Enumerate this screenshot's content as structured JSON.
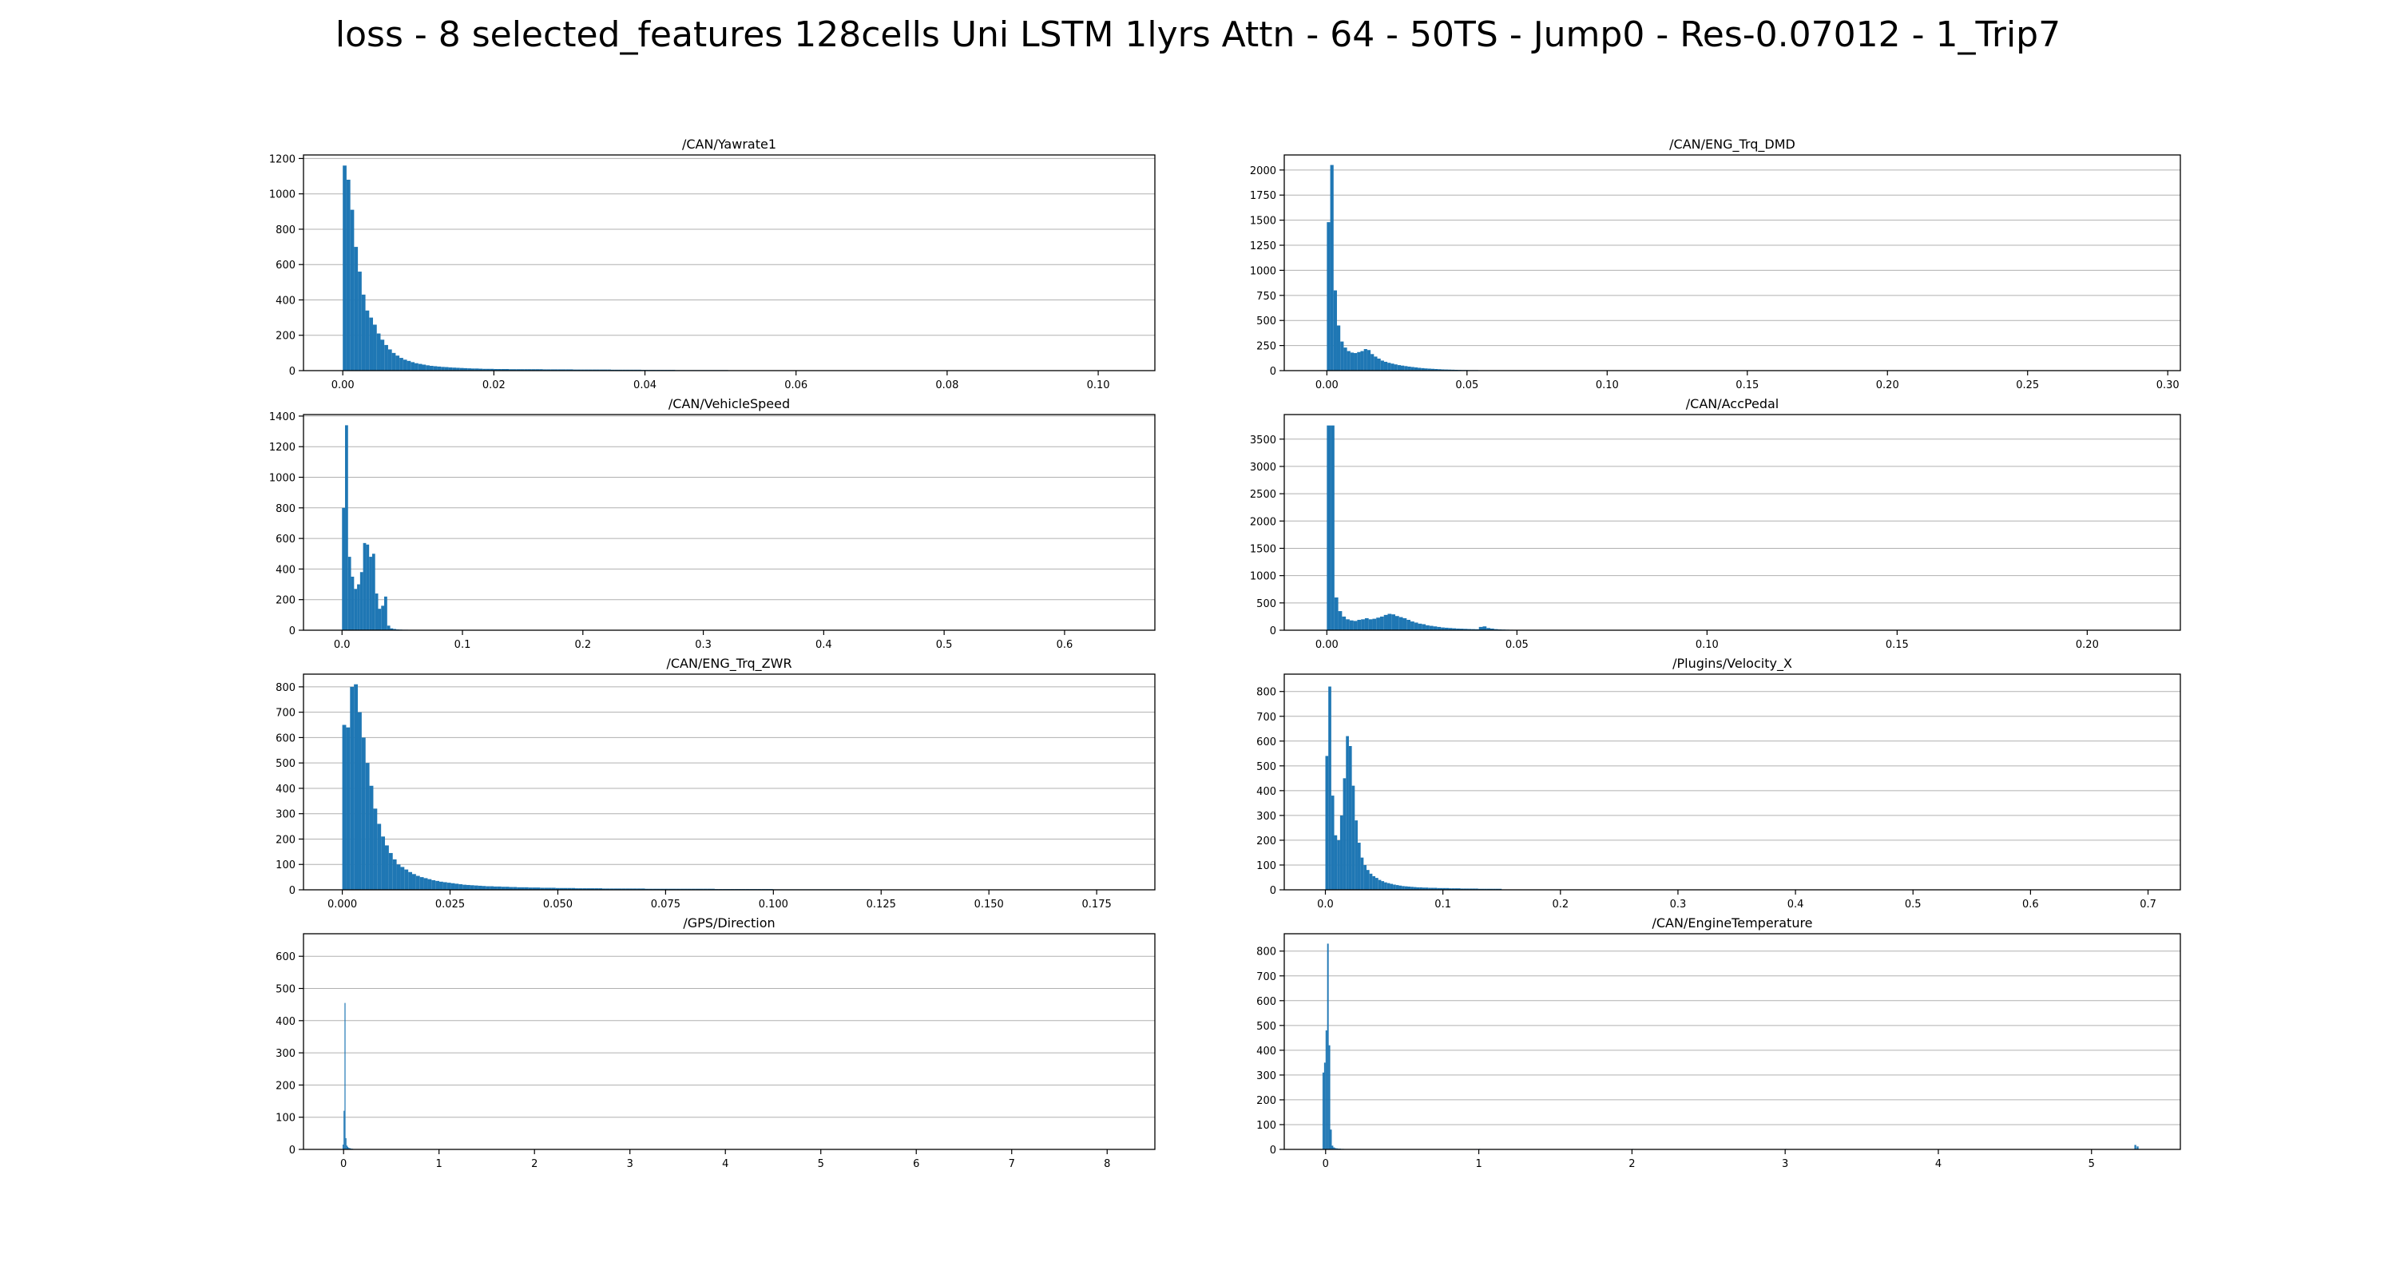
{
  "figure": {
    "title": "loss - 8 selected_features 128cells Uni LSTM 1lyrs Attn - 64 - 50TS - Jump0 - Res-0.07012 - 1_Trip7",
    "bar_color": "#1f77b4",
    "grid_color": "#b0b0b0"
  },
  "chart_data": [
    {
      "type": "bar",
      "title": "/CAN/Yawrate1",
      "grid": "y",
      "xlim": [
        -0.0052,
        0.1075
      ],
      "ylim": [
        0,
        1220
      ],
      "xticks": [
        0.0,
        0.02,
        0.04,
        0.06,
        0.08,
        0.1
      ],
      "xtick_labels": [
        "0.00",
        "0.02",
        "0.04",
        "0.06",
        "0.08",
        "0.10"
      ],
      "yticks": [
        0,
        200,
        400,
        600,
        800,
        1000,
        1200
      ],
      "ytick_labels": [
        "0",
        "200",
        "400",
        "600",
        "800",
        "1000",
        "1200"
      ],
      "bins": {
        "start": 0.0,
        "width": 0.0005,
        "counts": [
          1160,
          1080,
          910,
          700,
          560,
          430,
          340,
          300,
          260,
          210,
          175,
          145,
          120,
          100,
          85,
          72,
          62,
          55,
          48,
          42,
          38,
          34,
          30,
          27,
          25,
          23,
          21,
          20,
          18,
          17,
          16,
          15,
          14,
          13,
          12,
          12,
          11,
          10,
          10,
          10,
          9,
          9,
          9,
          9,
          8,
          8,
          8,
          8,
          8,
          8,
          8,
          8,
          8,
          7,
          7,
          7,
          7,
          7,
          7,
          7,
          7,
          6,
          6,
          6,
          6,
          6,
          6,
          6,
          6,
          6,
          6,
          5,
          5,
          5,
          5,
          5,
          5,
          5,
          5,
          4,
          4,
          4,
          4,
          4,
          4,
          4,
          4,
          4,
          3,
          3,
          3,
          3,
          3,
          3,
          3,
          3,
          3,
          3,
          3,
          3,
          3,
          3,
          2,
          2,
          2,
          2,
          2,
          2,
          2,
          2,
          2,
          2,
          2,
          2,
          2,
          2,
          2,
          2,
          2,
          2,
          2,
          2,
          2,
          2,
          2,
          2,
          2,
          2,
          2,
          2,
          1,
          1,
          1,
          1,
          1,
          1,
          1,
          1,
          1,
          1,
          1,
          1,
          1,
          1,
          1,
          1,
          1,
          1,
          1,
          1,
          1,
          1,
          1,
          1,
          1,
          1,
          1,
          1,
          1,
          1,
          1,
          1,
          1,
          1,
          1,
          1,
          1,
          1,
          1,
          1,
          1,
          1,
          1,
          1,
          1,
          1,
          1,
          1,
          1,
          1,
          1,
          1,
          1,
          1,
          1,
          1,
          1,
          1,
          1,
          1,
          1,
          1,
          1,
          1,
          1,
          1,
          1,
          1,
          1,
          1,
          1,
          1,
          1,
          1
        ]
      }
    },
    {
      "type": "bar",
      "title": "/CAN/ENG_Trq_DMD",
      "grid": "y",
      "xlim": [
        -0.0152,
        0.3045
      ],
      "ylim": [
        0,
        2150
      ],
      "xticks": [
        0.0,
        0.05,
        0.1,
        0.15,
        0.2,
        0.25,
        0.3
      ],
      "xtick_labels": [
        "0.00",
        "0.05",
        "0.10",
        "0.15",
        "0.20",
        "0.25",
        "0.30"
      ],
      "yticks": [
        0,
        250,
        500,
        750,
        1000,
        1250,
        1500,
        1750,
        2000
      ],
      "ytick_labels": [
        "0",
        "250",
        "500",
        "750",
        "1000",
        "1250",
        "1500",
        "1750",
        "2000"
      ],
      "bins": {
        "start": 0.0,
        "width": 0.0012,
        "counts": [
          1480,
          2050,
          800,
          450,
          290,
          230,
          195,
          180,
          175,
          185,
          195,
          215,
          205,
          165,
          140,
          120,
          100,
          88,
          78,
          70,
          62,
          55,
          50,
          45,
          40,
          36,
          32,
          28,
          25,
          22,
          20,
          18,
          16,
          14,
          12,
          11,
          10,
          9,
          8,
          7,
          6,
          6,
          5,
          5,
          5,
          4,
          4,
          4,
          3,
          3,
          3,
          3,
          3,
          2,
          2,
          2,
          2,
          2,
          2,
          2,
          2,
          2,
          2,
          1,
          1,
          1,
          1,
          1,
          1,
          1,
          1,
          1,
          1,
          1,
          1,
          1,
          1,
          1,
          1,
          1,
          1,
          1,
          1,
          1,
          1,
          1,
          1,
          1,
          1,
          1,
          1,
          1,
          1,
          1,
          1,
          1,
          1,
          1,
          1,
          1
        ]
      }
    },
    {
      "type": "bar",
      "title": "/CAN/VehicleSpeed",
      "grid": "y",
      "xlim": [
        -0.032,
        0.675
      ],
      "ylim": [
        0,
        1410
      ],
      "xticks": [
        0.0,
        0.1,
        0.2,
        0.3,
        0.4,
        0.5,
        0.6
      ],
      "xtick_labels": [
        "0.0",
        "0.1",
        "0.2",
        "0.3",
        "0.4",
        "0.5",
        "0.6"
      ],
      "yticks": [
        0,
        200,
        400,
        600,
        800,
        1000,
        1200,
        1400
      ],
      "ytick_labels": [
        "0",
        "200",
        "400",
        "600",
        "800",
        "1000",
        "1200",
        "1400"
      ],
      "bins": {
        "start": 0.0,
        "width": 0.0025,
        "counts": [
          800,
          1340,
          480,
          350,
          270,
          300,
          380,
          570,
          560,
          480,
          500,
          240,
          140,
          160,
          220,
          30,
          12,
          8,
          5,
          4,
          3,
          3,
          2,
          2,
          2,
          1,
          1,
          1,
          1,
          1,
          1,
          1,
          1
        ]
      }
    },
    {
      "type": "bar",
      "title": "/CAN/AccPedal",
      "grid": "y",
      "xlim": [
        -0.0112,
        0.2245
      ],
      "ylim": [
        0,
        3950
      ],
      "xticks": [
        0.0,
        0.05,
        0.1,
        0.15,
        0.2
      ],
      "xtick_labels": [
        "0.00",
        "0.05",
        "0.10",
        "0.15",
        "0.20"
      ],
      "yticks": [
        0,
        500,
        1000,
        1500,
        2000,
        2500,
        3000,
        3500
      ],
      "ytick_labels": [
        "0",
        "500",
        "1000",
        "1500",
        "2000",
        "2500",
        "3000",
        "3500"
      ],
      "bins": {
        "start": 0.0,
        "width": 0.001,
        "counts": [
          3750,
          3750,
          600,
          350,
          250,
          200,
          180,
          170,
          190,
          200,
          220,
          200,
          210,
          230,
          250,
          280,
          300,
          290,
          260,
          240,
          220,
          190,
          160,
          140,
          120,
          110,
          90,
          80,
          70,
          60,
          50,
          45,
          40,
          35,
          30,
          28,
          25,
          22,
          20,
          18,
          60,
          70,
          40,
          30,
          20,
          15,
          12,
          10,
          8,
          6,
          5,
          4,
          4,
          3,
          3,
          3,
          2,
          2,
          2,
          2,
          2
        ]
      }
    },
    {
      "type": "bar",
      "title": "/CAN/ENG_Trq_ZWR",
      "grid": "y",
      "xlim": [
        -0.009,
        0.1885
      ],
      "ylim": [
        0,
        850
      ],
      "xticks": [
        0.0,
        0.025,
        0.05,
        0.075,
        0.1,
        0.125,
        0.15,
        0.175
      ],
      "xtick_labels": [
        "0.000",
        "0.025",
        "0.050",
        "0.075",
        "0.100",
        "0.125",
        "0.150",
        "0.175"
      ],
      "yticks": [
        0,
        100,
        200,
        300,
        400,
        500,
        600,
        700,
        800
      ],
      "ytick_labels": [
        "0",
        "100",
        "200",
        "300",
        "400",
        "500",
        "600",
        "700",
        "800"
      ],
      "bins": {
        "start": 0.0,
        "width": 0.0009,
        "counts": [
          650,
          640,
          800,
          810,
          700,
          600,
          500,
          410,
          320,
          260,
          210,
          175,
          145,
          120,
          100,
          90,
          80,
          70,
          62,
          55,
          50,
          46,
          42,
          38,
          35,
          32,
          30,
          28,
          26,
          24,
          22,
          20,
          19,
          18,
          17,
          16,
          15,
          14,
          14,
          13,
          13,
          12,
          12,
          11,
          11,
          10,
          10,
          10,
          9,
          9,
          9,
          8,
          8,
          8,
          8,
          7,
          7,
          7,
          7,
          7,
          6,
          6,
          6,
          6,
          6,
          6,
          6,
          5,
          5,
          5,
          5,
          5,
          5,
          5,
          5,
          5,
          5,
          5,
          4,
          4,
          4,
          4,
          4,
          4,
          4,
          4,
          4,
          4,
          4,
          4,
          4,
          4,
          4,
          4,
          4,
          4,
          3,
          3,
          3,
          3,
          3,
          3,
          3,
          3,
          3,
          3,
          3,
          3,
          3,
          3,
          3,
          2,
          2,
          2,
          2,
          2,
          2,
          2,
          2,
          2,
          2,
          2,
          2,
          2,
          2,
          2,
          2,
          2,
          2,
          2,
          2,
          2,
          2,
          2,
          2,
          2,
          1,
          1,
          1,
          1,
          1,
          1,
          1,
          1,
          1,
          1,
          1,
          1,
          1,
          1,
          1,
          1,
          1,
          1,
          1,
          1,
          1,
          1,
          1,
          1,
          1,
          1,
          1,
          1,
          1,
          1,
          1,
          1,
          1,
          1,
          1,
          1,
          1,
          1,
          1,
          1,
          1,
          1,
          1,
          1,
          1,
          1,
          1,
          1,
          1,
          1,
          1,
          1,
          1,
          1,
          1,
          1,
          1,
          1
        ]
      }
    },
    {
      "type": "bar",
      "title": "/Plugins/Velocity_X",
      "grid": "y",
      "xlim": [
        -0.035,
        0.7275
      ],
      "ylim": [
        0,
        870
      ],
      "xticks": [
        0.0,
        0.1,
        0.2,
        0.3,
        0.4,
        0.5,
        0.6,
        0.7
      ],
      "xtick_labels": [
        "0.0",
        "0.1",
        "0.2",
        "0.3",
        "0.4",
        "0.5",
        "0.6",
        "0.7"
      ],
      "yticks": [
        0,
        100,
        200,
        300,
        400,
        500,
        600,
        700,
        800
      ],
      "ytick_labels": [
        "0",
        "100",
        "200",
        "300",
        "400",
        "500",
        "600",
        "700",
        "800"
      ],
      "bins": {
        "start": 0.0,
        "width": 0.0025,
        "counts": [
          540,
          820,
          380,
          220,
          200,
          300,
          450,
          620,
          580,
          420,
          280,
          190,
          130,
          100,
          80,
          65,
          55,
          48,
          40,
          35,
          30,
          27,
          24,
          21,
          19,
          17,
          15,
          14,
          13,
          12,
          11,
          10,
          10,
          9,
          9,
          8,
          8,
          8,
          7,
          7,
          7,
          7,
          6,
          6,
          6,
          6,
          5,
          5,
          5,
          5,
          5,
          5,
          4,
          4,
          4,
          4,
          4,
          4,
          4,
          4
        ]
      }
    },
    {
      "type": "bar",
      "title": "/GPS/Direction",
      "grid": "y",
      "xlim": [
        -0.42,
        8.5
      ],
      "ylim": [
        0,
        670
      ],
      "xticks": [
        0,
        1,
        2,
        3,
        4,
        5,
        6,
        7,
        8
      ],
      "xtick_labels": [
        "0",
        "1",
        "2",
        "3",
        "4",
        "5",
        "6",
        "7",
        "8"
      ],
      "yticks": [
        0,
        100,
        200,
        300,
        400,
        500,
        600
      ],
      "ytick_labels": [
        "0",
        "100",
        "200",
        "300",
        "400",
        "500",
        "600"
      ],
      "bins": {
        "start": -0.01,
        "width": 0.01,
        "counts": [
          15,
          120,
          455,
          35,
          12,
          8,
          5,
          4,
          3,
          2,
          2,
          1
        ]
      }
    },
    {
      "type": "bar",
      "title": "/CAN/EngineTemperature",
      "grid": "y",
      "xlim": [
        -0.27,
        5.58
      ],
      "ylim": [
        0,
        870
      ],
      "xticks": [
        0,
        1,
        2,
        3,
        4,
        5
      ],
      "xtick_labels": [
        "0",
        "1",
        "2",
        "3",
        "4",
        "5"
      ],
      "yticks": [
        0,
        100,
        200,
        300,
        400,
        500,
        600,
        700,
        800
      ],
      "ytick_labels": [
        "0",
        "100",
        "200",
        "300",
        "400",
        "500",
        "600",
        "700",
        "800"
      ],
      "bins": {
        "start": -0.02,
        "width": 0.01,
        "counts": [
          310,
          350,
          480,
          830,
          420,
          80,
          15,
          8,
          5,
          4,
          3,
          3,
          2,
          2
        ]
      },
      "extra_bars": [
        {
          "x": 5.28,
          "width": 0.012,
          "count": 18
        },
        {
          "x": 5.295,
          "width": 0.012,
          "count": 12
        },
        {
          "x": 1.0,
          "width": 0.01,
          "count": 2
        },
        {
          "x": 2.0,
          "width": 0.01,
          "count": 2
        },
        {
          "x": 3.0,
          "width": 0.01,
          "count": 2
        },
        {
          "x": 4.0,
          "width": 0.01,
          "count": 1
        }
      ]
    }
  ]
}
